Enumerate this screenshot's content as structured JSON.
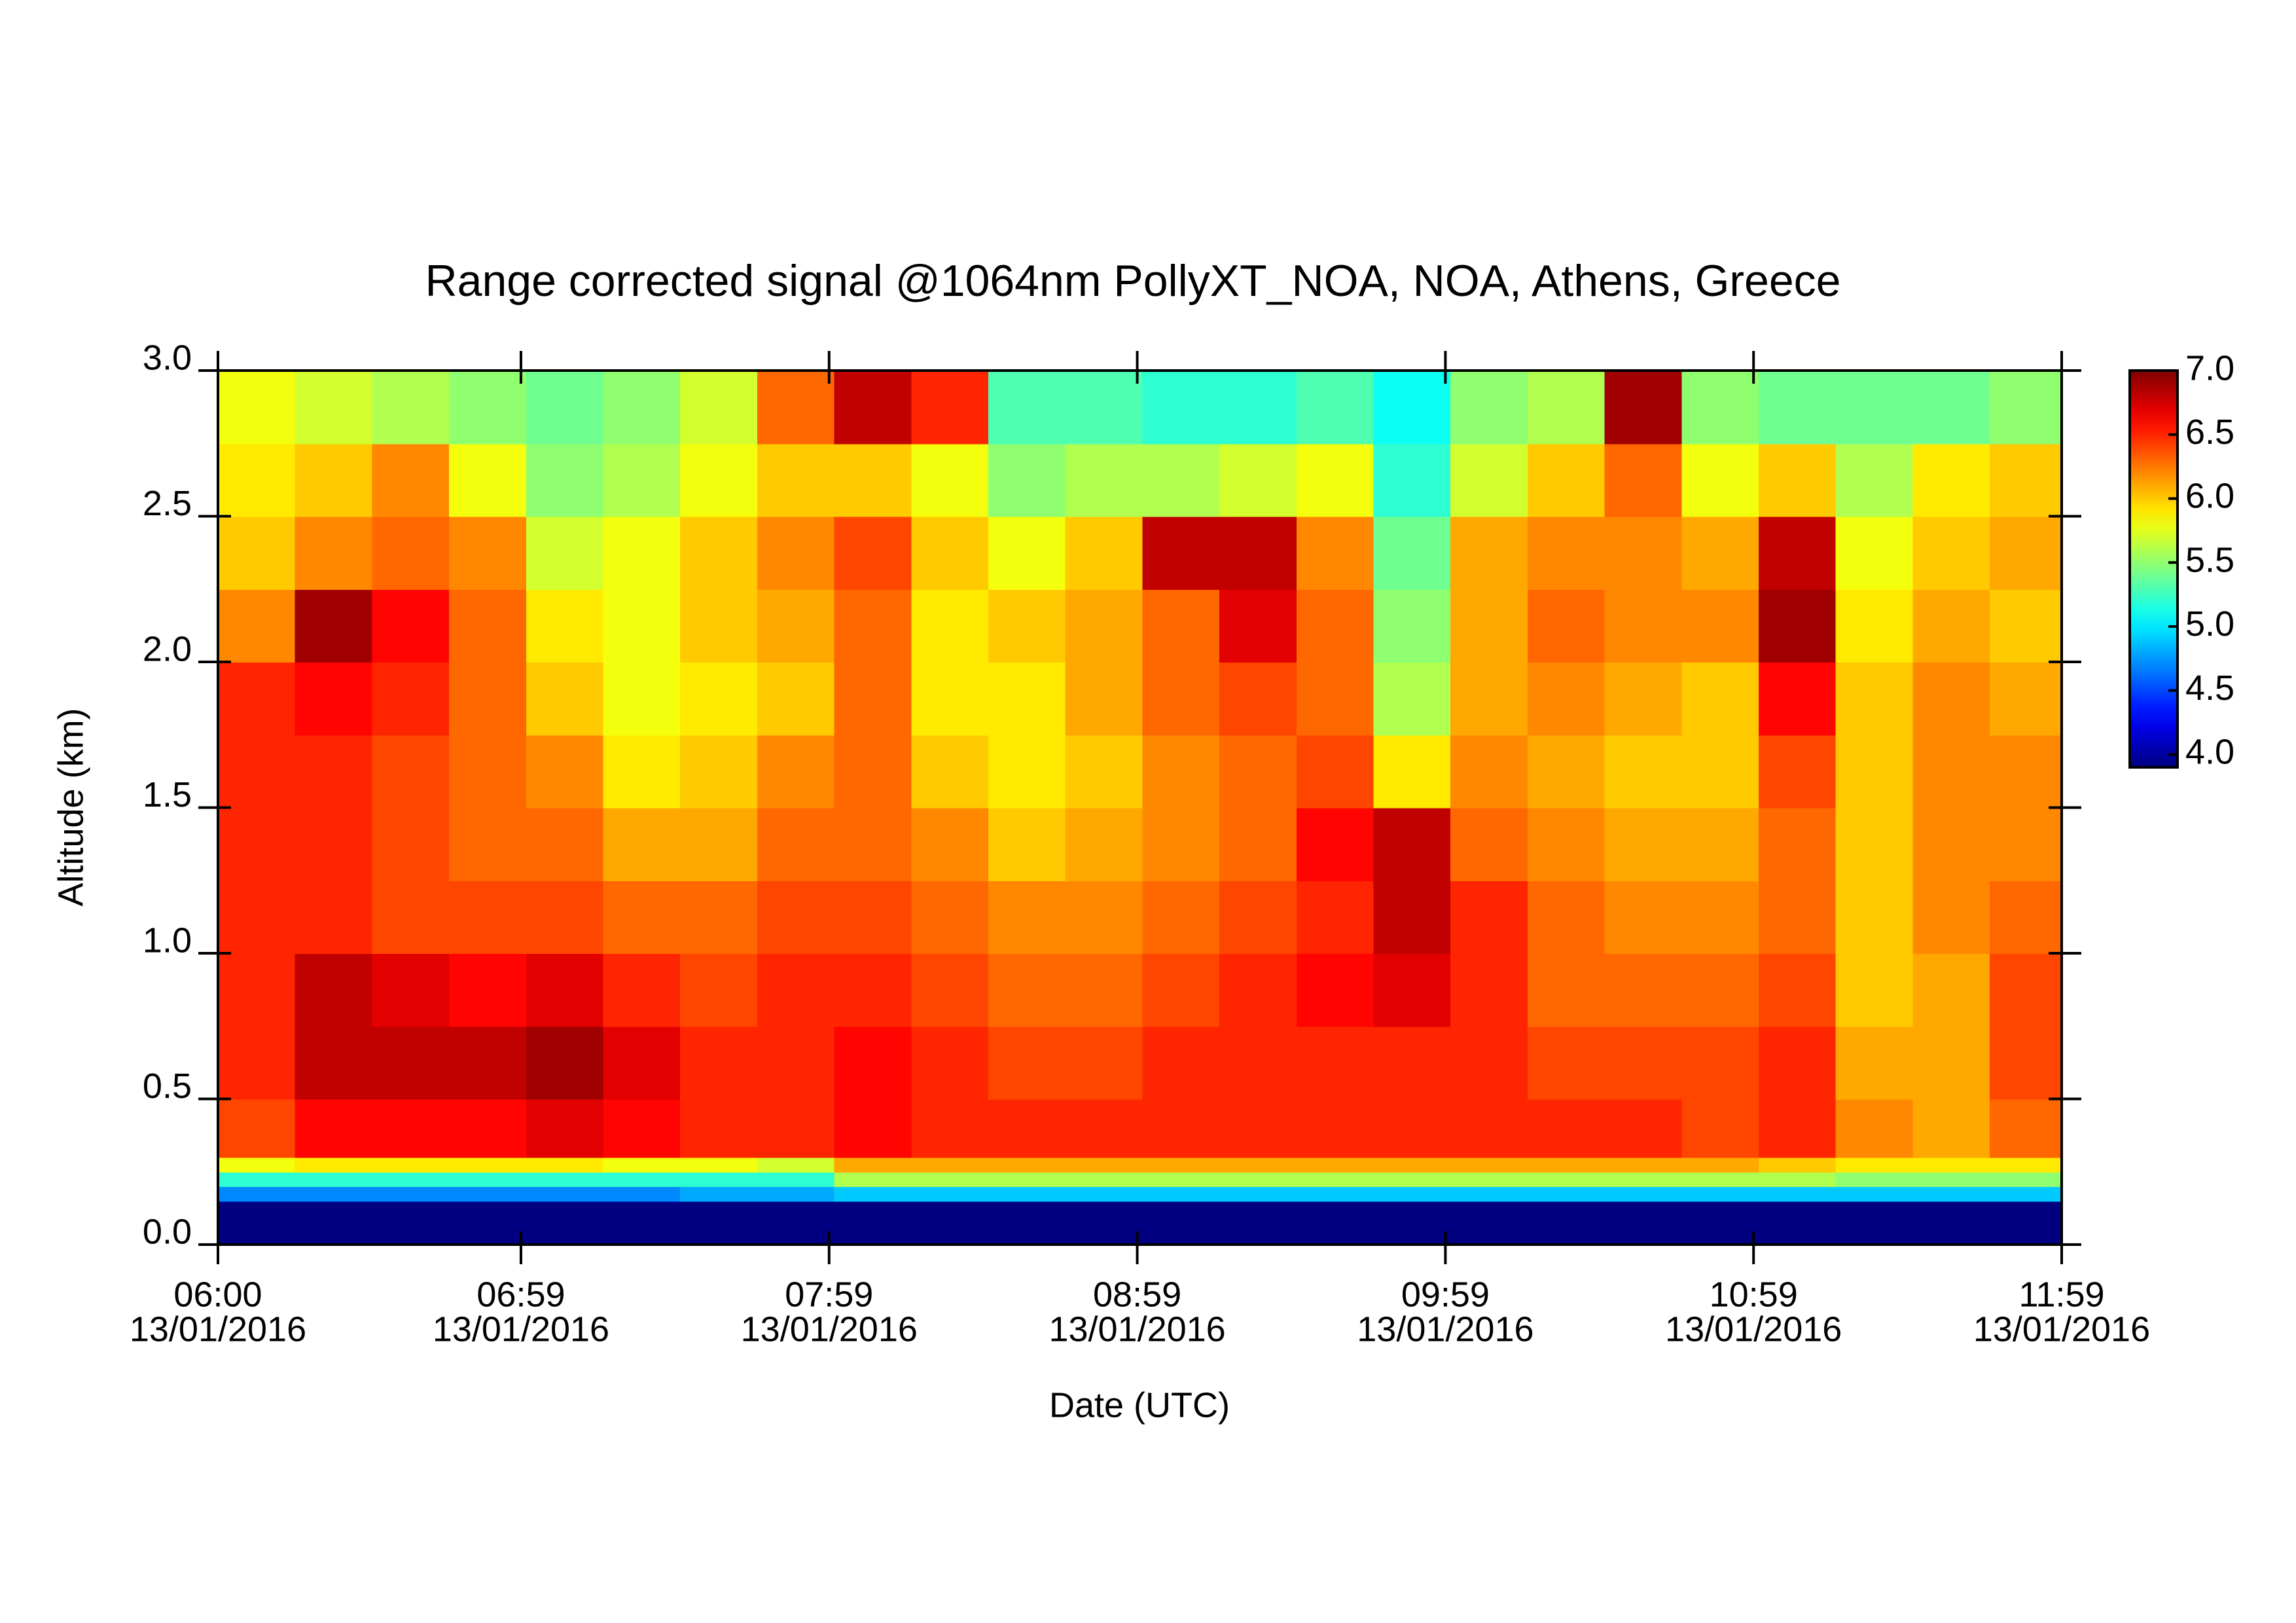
{
  "chart_data": {
    "type": "heatmap",
    "title": "Range corrected signal @1064nm  PollyXT_NOA, NOA, Athens, Greece",
    "xlabel": "Date (UTC)",
    "ylabel": "Altitude (km)",
    "x": [
      "2016-01-13T06:00",
      "2016-01-13T06:15",
      "2016-01-13T06:30",
      "2016-01-13T06:45",
      "2016-01-13T07:00",
      "2016-01-13T07:15",
      "2016-01-13T07:30",
      "2016-01-13T07:45",
      "2016-01-13T08:00",
      "2016-01-13T08:15",
      "2016-01-13T08:30",
      "2016-01-13T08:45",
      "2016-01-13T09:00",
      "2016-01-13T09:15",
      "2016-01-13T09:30",
      "2016-01-13T09:45",
      "2016-01-13T10:00",
      "2016-01-13T10:15",
      "2016-01-13T10:30",
      "2016-01-13T10:45",
      "2016-01-13T11:00",
      "2016-01-13T11:15",
      "2016-01-13T11:30",
      "2016-01-13T11:45"
    ],
    "y_edges": [
      0,
      0.15,
      0.2,
      0.25,
      0.3,
      0.5,
      0.75,
      1.0,
      1.25,
      1.5,
      1.75,
      2.0,
      2.25,
      2.5,
      2.75,
      3.0
    ],
    "values": [
      [
        3.9,
        3.9,
        3.9,
        3.9,
        3.9,
        3.9,
        3.9,
        3.9,
        3.9,
        3.9,
        3.9,
        3.9,
        3.9,
        3.9,
        3.9,
        3.9,
        3.9,
        3.9,
        3.9,
        3.9,
        3.9,
        3.9,
        3.9,
        3.9
      ],
      [
        4.7,
        4.7,
        4.7,
        4.7,
        4.7,
        4.7,
        4.8,
        4.8,
        4.9,
        4.9,
        4.9,
        4.9,
        4.9,
        4.9,
        4.9,
        4.9,
        4.9,
        4.9,
        4.9,
        4.9,
        4.9,
        4.9,
        4.9,
        4.9
      ],
      [
        5.2,
        5.2,
        5.2,
        5.2,
        5.2,
        5.2,
        5.2,
        5.2,
        5.6,
        5.6,
        5.6,
        5.6,
        5.6,
        5.6,
        5.6,
        5.6,
        5.6,
        5.6,
        5.6,
        5.6,
        5.6,
        5.5,
        5.5,
        5.5
      ],
      [
        5.8,
        5.9,
        5.9,
        5.9,
        5.9,
        5.8,
        5.8,
        5.7,
        6.1,
        6.1,
        6.1,
        6.1,
        6.1,
        6.1,
        6.1,
        6.1,
        6.1,
        6.1,
        6.1,
        6.1,
        6.0,
        5.9,
        5.9,
        5.9
      ],
      [
        6.4,
        6.6,
        6.6,
        6.6,
        6.7,
        6.6,
        6.5,
        6.5,
        6.6,
        6.5,
        6.5,
        6.5,
        6.5,
        6.5,
        6.5,
        6.5,
        6.5,
        6.5,
        6.5,
        6.4,
        6.5,
        6.2,
        6.1,
        6.3
      ],
      [
        6.5,
        6.8,
        6.8,
        6.8,
        6.9,
        6.7,
        6.5,
        6.5,
        6.6,
        6.5,
        6.4,
        6.4,
        6.5,
        6.5,
        6.5,
        6.5,
        6.5,
        6.4,
        6.4,
        6.4,
        6.5,
        6.1,
        6.1,
        6.4
      ],
      [
        6.5,
        6.8,
        6.7,
        6.6,
        6.7,
        6.5,
        6.4,
        6.5,
        6.5,
        6.4,
        6.3,
        6.3,
        6.4,
        6.5,
        6.6,
        6.7,
        6.5,
        6.3,
        6.3,
        6.3,
        6.4,
        6.0,
        6.1,
        6.4
      ],
      [
        6.5,
        6.5,
        6.4,
        6.4,
        6.4,
        6.3,
        6.3,
        6.4,
        6.4,
        6.3,
        6.2,
        6.2,
        6.3,
        6.4,
        6.5,
        6.8,
        6.5,
        6.3,
        6.2,
        6.2,
        6.3,
        6.0,
        6.2,
        6.3
      ],
      [
        6.5,
        6.5,
        6.4,
        6.3,
        6.3,
        6.1,
        6.1,
        6.3,
        6.3,
        6.2,
        6.0,
        6.1,
        6.2,
        6.3,
        6.6,
        6.8,
        6.3,
        6.2,
        6.1,
        6.1,
        6.3,
        6.0,
        6.2,
        6.2
      ],
      [
        6.5,
        6.5,
        6.4,
        6.3,
        6.2,
        5.9,
        6.0,
        6.2,
        6.3,
        6.0,
        5.9,
        6.0,
        6.2,
        6.3,
        6.4,
        5.9,
        6.2,
        6.1,
        6.0,
        6.0,
        6.4,
        6.0,
        6.2,
        6.2
      ],
      [
        6.5,
        6.6,
        6.5,
        6.3,
        6.0,
        5.8,
        5.9,
        6.0,
        6.3,
        5.9,
        5.9,
        6.1,
        6.3,
        6.4,
        6.3,
        5.6,
        6.1,
        6.2,
        6.1,
        6.0,
        6.6,
        6.0,
        6.2,
        6.1
      ],
      [
        6.2,
        6.9,
        6.6,
        6.3,
        5.9,
        5.8,
        6.0,
        6.1,
        6.3,
        5.9,
        6.0,
        6.1,
        6.3,
        6.7,
        6.3,
        5.5,
        6.1,
        6.3,
        6.2,
        6.2,
        6.9,
        5.9,
        6.1,
        6.0
      ],
      [
        6.0,
        6.2,
        6.3,
        6.2,
        5.7,
        5.8,
        6.0,
        6.2,
        6.4,
        6.0,
        5.8,
        6.0,
        6.8,
        6.8,
        6.2,
        5.4,
        6.1,
        6.2,
        6.2,
        6.1,
        6.8,
        5.8,
        6.0,
        6.1
      ],
      [
        5.9,
        6.0,
        6.2,
        5.8,
        5.5,
        5.6,
        5.8,
        6.0,
        6.0,
        5.8,
        5.5,
        5.6,
        5.6,
        5.7,
        5.8,
        5.2,
        5.7,
        6.0,
        6.3,
        5.8,
        6.0,
        5.6,
        5.9,
        6.0
      ],
      [
        5.8,
        5.7,
        5.6,
        5.5,
        5.4,
        5.5,
        5.7,
        6.3,
        6.8,
        6.5,
        5.3,
        5.3,
        5.2,
        5.2,
        5.3,
        5.1,
        5.5,
        5.6,
        6.9,
        5.5,
        5.4,
        5.4,
        5.4,
        5.5
      ]
    ],
    "xlim": [
      "2016-01-13T06:00",
      "2016-01-13T11:59"
    ],
    "xticks": [
      {
        "value": "2016-01-13T06:00",
        "label": [
          "06:00",
          "13/01/2016"
        ]
      },
      {
        "value": "2016-01-13T06:59",
        "label": [
          "06:59",
          "13/01/2016"
        ]
      },
      {
        "value": "2016-01-13T07:59",
        "label": [
          "07:59",
          "13/01/2016"
        ]
      },
      {
        "value": "2016-01-13T08:59",
        "label": [
          "08:59",
          "13/01/2016"
        ]
      },
      {
        "value": "2016-01-13T09:59",
        "label": [
          "09:59",
          "13/01/2016"
        ]
      },
      {
        "value": "2016-01-13T10:59",
        "label": [
          "10:59",
          "13/01/2016"
        ]
      },
      {
        "value": "2016-01-13T11:59",
        "label": [
          "11:59",
          "13/01/2016"
        ]
      }
    ],
    "ylim": [
      0,
      3.0
    ],
    "yticks": [
      {
        "value": 0,
        "label": "0.0"
      },
      0.5,
      {
        "value": 1,
        "label": "1.0"
      },
      1.5,
      {
        "value": 2,
        "label": "2.0"
      },
      2.5,
      {
        "value": 3,
        "label": "3.0"
      }
    ],
    "colormap": "jet",
    "clim": [
      3.9,
      7.0
    ],
    "cticks": [
      {
        "value": 4,
        "label": "4.0"
      },
      4.5,
      {
        "value": 5,
        "label": "5.0"
      },
      5.5,
      {
        "value": 6,
        "label": "6.0"
      },
      6.5,
      {
        "value": 7,
        "label": "7.0"
      }
    ]
  }
}
